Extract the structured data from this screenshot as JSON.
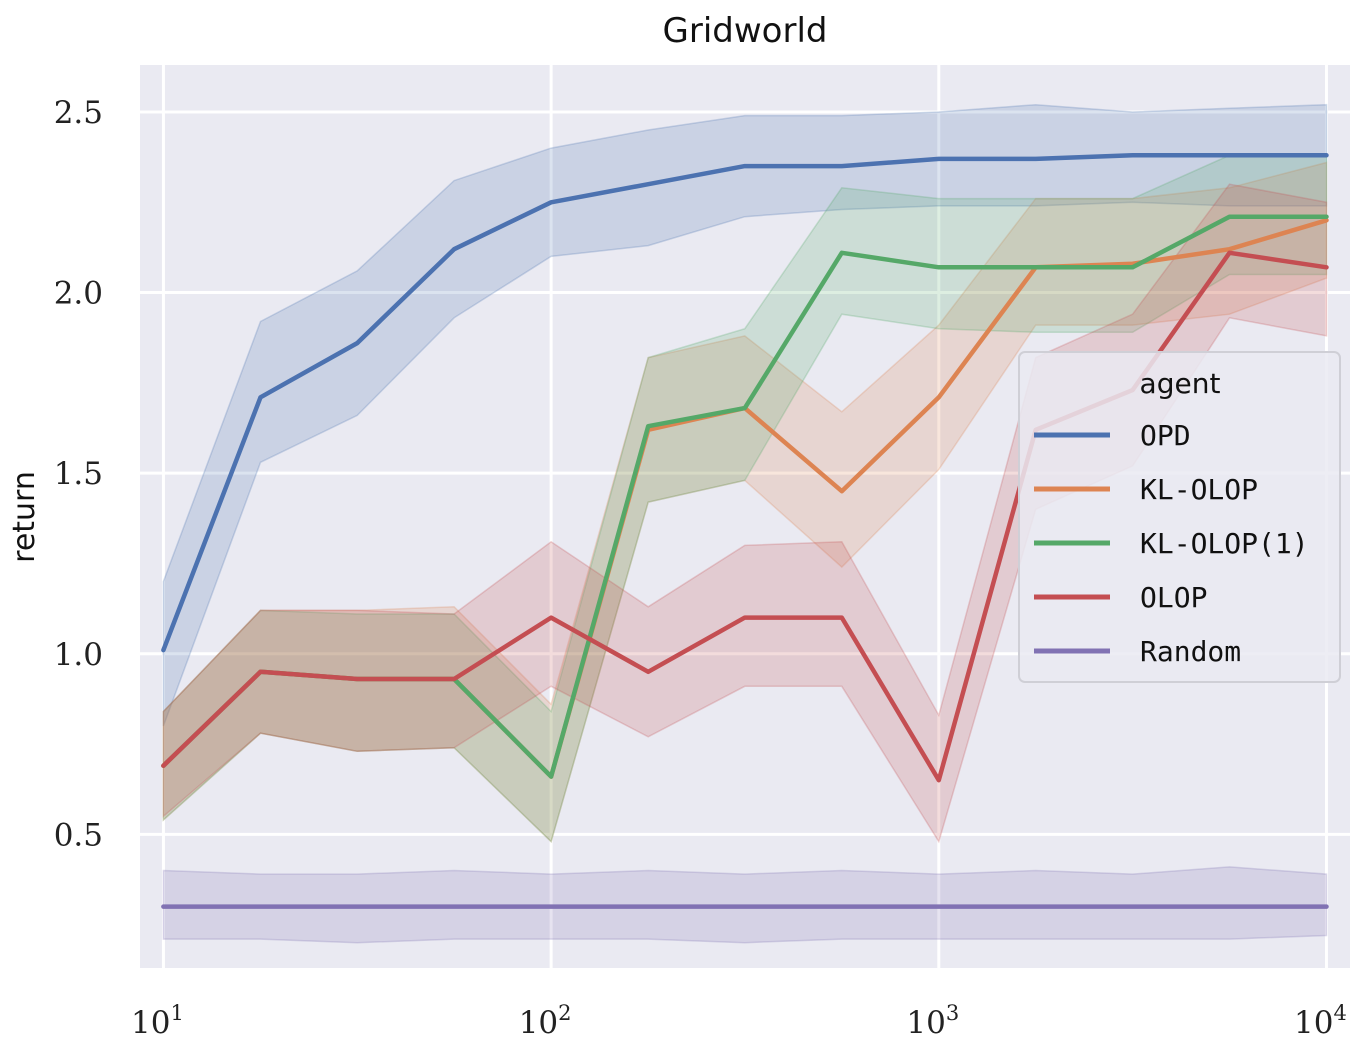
{
  "chart_data": {
    "type": "line",
    "title": "Gridworld",
    "xlabel": "",
    "ylabel": "return",
    "xscale": "log",
    "xlim": [
      8.7,
      11500
    ],
    "ylim": [
      0.13,
      2.63
    ],
    "grid": true,
    "x_ticks": [
      {
        "value": 10,
        "base": "10",
        "exp": "1"
      },
      {
        "value": 100,
        "base": "10",
        "exp": "2"
      },
      {
        "value": 1000,
        "base": "10",
        "exp": "3"
      },
      {
        "value": 10000,
        "base": "10",
        "exp": "4"
      }
    ],
    "y_ticks": [
      {
        "value": 0.5,
        "label": "0.5"
      },
      {
        "value": 1.0,
        "label": "1.0"
      },
      {
        "value": 1.5,
        "label": "1.5"
      },
      {
        "value": 2.0,
        "label": "2.0"
      },
      {
        "value": 2.5,
        "label": "2.5"
      }
    ],
    "x": [
      10,
      17.8,
      31.6,
      56.2,
      100,
      178,
      316,
      562,
      1000,
      1778,
      3162,
      5623,
      10000
    ],
    "legend": {
      "title": "agent",
      "position": "center-right"
    },
    "series": [
      {
        "name": "OPD",
        "color": "#4c72b0",
        "values": [
          1.01,
          1.71,
          1.86,
          2.12,
          2.25,
          2.3,
          2.35,
          2.35,
          2.37,
          2.37,
          2.38,
          2.38,
          2.38
        ],
        "lower": [
          0.8,
          1.53,
          1.66,
          1.93,
          2.1,
          2.13,
          2.21,
          2.23,
          2.24,
          2.24,
          2.25,
          2.24,
          2.24
        ],
        "upper": [
          1.2,
          1.92,
          2.06,
          2.31,
          2.4,
          2.45,
          2.49,
          2.49,
          2.5,
          2.52,
          2.5,
          2.51,
          2.52
        ]
      },
      {
        "name": "KL-OLOP",
        "color": "#dd8452",
        "values": [
          0.69,
          0.95,
          0.93,
          0.93,
          0.66,
          1.62,
          1.68,
          1.45,
          1.71,
          2.07,
          2.08,
          2.12,
          2.2
        ],
        "lower": [
          0.54,
          0.78,
          0.73,
          0.74,
          0.48,
          1.42,
          1.48,
          1.24,
          1.51,
          1.91,
          1.91,
          1.94,
          2.04
        ],
        "upper": [
          0.84,
          1.12,
          1.12,
          1.13,
          0.86,
          1.82,
          1.88,
          1.67,
          1.91,
          2.26,
          2.26,
          2.29,
          2.36
        ]
      },
      {
        "name": "KL-OLOP(1)",
        "color": "#55a868",
        "values": [
          0.69,
          0.95,
          0.93,
          0.93,
          0.66,
          1.63,
          1.68,
          2.11,
          2.07,
          2.07,
          2.07,
          2.21,
          2.21
        ],
        "lower": [
          0.54,
          0.78,
          0.73,
          0.74,
          0.48,
          1.42,
          1.48,
          1.94,
          1.9,
          1.89,
          1.89,
          2.05,
          2.05
        ],
        "upper": [
          0.84,
          1.12,
          1.11,
          1.11,
          0.84,
          1.82,
          1.9,
          2.29,
          2.26,
          2.26,
          2.26,
          2.38,
          2.38
        ]
      },
      {
        "name": "OLOP",
        "color": "#c44e52",
        "values": [
          0.69,
          0.95,
          0.93,
          0.93,
          1.1,
          0.95,
          1.1,
          1.1,
          0.65,
          1.62,
          1.73,
          2.11,
          2.07
        ],
        "lower": [
          0.55,
          0.78,
          0.73,
          0.74,
          0.91,
          0.77,
          0.91,
          0.91,
          0.48,
          1.4,
          1.52,
          1.93,
          1.88
        ],
        "upper": [
          0.84,
          1.12,
          1.12,
          1.11,
          1.31,
          1.13,
          1.3,
          1.31,
          0.83,
          1.82,
          1.94,
          2.3,
          2.25
        ]
      },
      {
        "name": "Random",
        "color": "#8172b3",
        "values": [
          0.3,
          0.3,
          0.3,
          0.3,
          0.3,
          0.3,
          0.3,
          0.3,
          0.3,
          0.3,
          0.3,
          0.3,
          0.3
        ],
        "lower": [
          0.21,
          0.21,
          0.2,
          0.21,
          0.21,
          0.21,
          0.2,
          0.21,
          0.21,
          0.21,
          0.21,
          0.21,
          0.22
        ],
        "upper": [
          0.4,
          0.39,
          0.39,
          0.4,
          0.39,
          0.4,
          0.39,
          0.4,
          0.39,
          0.4,
          0.39,
          0.41,
          0.39
        ]
      }
    ]
  }
}
